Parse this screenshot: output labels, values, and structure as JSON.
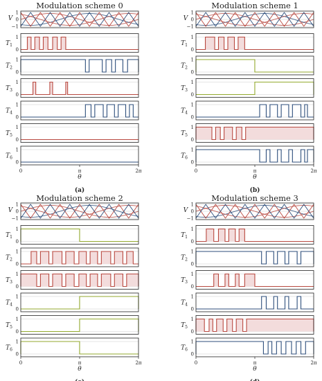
{
  "colors": {
    "red": "#b8483f",
    "blue": "#2d4e7b",
    "green": "#93aa2e",
    "fill": "#f3dcdc"
  },
  "chart_data": [
    {
      "type": "line",
      "panel": "a",
      "caption": "(a)",
      "title": "Modulation scheme 0",
      "xlabel": "θ",
      "x_ticks": [
        "0",
        "π",
        "2π"
      ],
      "xlim": [
        0,
        6.283
      ],
      "v_yticks": [
        "1",
        "0",
        "−1"
      ],
      "v_label": "V",
      "t_yticks": [
        "1",
        "0"
      ],
      "channels": [
        {
          "label": "T",
          "sub": "1",
          "color": "red",
          "fill": true,
          "default": 0,
          "pulses": [
            [
              0.35,
              0.55
            ],
            [
              0.75,
              1.0
            ],
            [
              1.2,
              1.45
            ],
            [
              1.7,
              1.95
            ],
            [
              2.15,
              2.4
            ]
          ]
        },
        {
          "label": "T",
          "sub": "2",
          "color": "blue",
          "default": 1,
          "pulses": [
            [
              0,
              3.45
            ],
            [
              3.65,
              4.35
            ],
            [
              4.55,
              4.85
            ],
            [
              5.05,
              5.45
            ],
            [
              5.7,
              6.283
            ]
          ]
        },
        {
          "label": "T",
          "sub": "3",
          "color": "red",
          "fill": true,
          "default": 1,
          "pulses": [
            [
              0.65,
              0.8
            ],
            [
              1.55,
              1.7
            ],
            [
              2.4,
              2.5
            ]
          ]
        },
        {
          "label": "T",
          "sub": "4",
          "color": "blue",
          "default": 0,
          "pulses": [
            [
              3.45,
              3.75
            ],
            [
              3.95,
              4.4
            ],
            [
              4.6,
              5.0
            ],
            [
              5.2,
              5.6
            ],
            [
              5.8,
              6.0
            ]
          ]
        },
        {
          "label": "T",
          "sub": "5",
          "color": "red",
          "default": 0,
          "pulses": []
        },
        {
          "label": "T",
          "sub": "6",
          "color": "blue",
          "default": 0,
          "pulses": []
        }
      ]
    },
    {
      "type": "line",
      "panel": "b",
      "caption": "(b)",
      "title": "Modulation scheme 1",
      "xlabel": "θ",
      "x_ticks": [
        "0",
        "π",
        "2π"
      ],
      "xlim": [
        0,
        6.283
      ],
      "v_yticks": [
        "1",
        "0",
        "−1"
      ],
      "v_label": "V",
      "t_yticks": [
        "1",
        "0"
      ],
      "channels": [
        {
          "label": "T",
          "sub": "1",
          "color": "red",
          "fill": true,
          "default": 0,
          "pulses": [
            [
              0.5,
              1.0
            ],
            [
              1.2,
              1.5
            ],
            [
              1.7,
              2.05
            ],
            [
              2.25,
              2.6
            ]
          ]
        },
        {
          "label": "T",
          "sub": "2",
          "color": "green",
          "default": 0,
          "pulses": [
            [
              0,
              3.14
            ]
          ]
        },
        {
          "label": "T",
          "sub": "3",
          "color": "green",
          "default": 0,
          "pulses": [
            [
              3.14,
              6.283
            ]
          ]
        },
        {
          "label": "T",
          "sub": "4",
          "color": "blue",
          "default": 0,
          "pulses": [
            [
              3.4,
              3.75
            ],
            [
              3.95,
              4.35
            ],
            [
              4.55,
              4.95
            ],
            [
              5.15,
              5.6
            ],
            [
              5.8,
              5.95
            ]
          ]
        },
        {
          "label": "T",
          "sub": "5",
          "color": "red",
          "fill": true,
          "default": 1,
          "pulses": [
            [
              0,
              0.85
            ],
            [
              1.05,
              1.3
            ],
            [
              1.5,
              1.95
            ],
            [
              2.15,
              2.45
            ],
            [
              2.65,
              6.283
            ]
          ]
        },
        {
          "label": "T",
          "sub": "6",
          "color": "blue",
          "default": 0,
          "pulses": [
            [
              0,
              3.4
            ],
            [
              3.75,
              3.95
            ],
            [
              4.35,
              4.55
            ],
            [
              4.95,
              5.15
            ],
            [
              5.6,
              5.8
            ],
            [
              5.95,
              6.283
            ]
          ]
        }
      ]
    },
    {
      "type": "line",
      "panel": "c",
      "caption": "(c)",
      "title": "Modulation scheme 2",
      "xlabel": "θ",
      "x_ticks": [
        "0",
        "π",
        "2π"
      ],
      "xlim": [
        0,
        6.283
      ],
      "v_yticks": [
        "1",
        "0",
        "−1"
      ],
      "v_label": "V",
      "t_yticks": [
        "1",
        "0"
      ],
      "channels": [
        {
          "label": "T",
          "sub": "1",
          "color": "green",
          "default": 0,
          "pulses": [
            [
              0,
              3.14
            ]
          ]
        },
        {
          "label": "T",
          "sub": "2",
          "color": "red",
          "fill": true,
          "default": 0,
          "pulses": [
            [
              0.55,
              0.85
            ],
            [
              1.05,
              1.5
            ],
            [
              1.7,
              2.2
            ],
            [
              2.4,
              2.85
            ],
            [
              3.1,
              3.5
            ],
            [
              3.7,
              4.1
            ],
            [
              4.3,
              4.8
            ],
            [
              5.0,
              5.45
            ],
            [
              5.65,
              6.0
            ]
          ]
        },
        {
          "label": "T",
          "sub": "3",
          "color": "red",
          "fill": true,
          "default": 0,
          "pulses": [
            [
              0,
              0.85
            ],
            [
              1.05,
              1.5
            ],
            [
              1.7,
              2.2
            ],
            [
              2.4,
              2.85
            ],
            [
              3.1,
              3.5
            ],
            [
              3.7,
              4.1
            ],
            [
              4.3,
              4.8
            ],
            [
              5.0,
              5.45
            ],
            [
              5.65,
              6.283
            ]
          ]
        },
        {
          "label": "T",
          "sub": "4",
          "color": "green",
          "default": 0,
          "pulses": [
            [
              3.14,
              6.283
            ]
          ]
        },
        {
          "label": "T",
          "sub": "5",
          "color": "green",
          "default": 0,
          "pulses": [
            [
              3.14,
              6.283
            ]
          ]
        },
        {
          "label": "T",
          "sub": "6",
          "color": "green",
          "default": 0,
          "pulses": [
            [
              0,
              3.14
            ]
          ]
        }
      ]
    },
    {
      "type": "line",
      "panel": "d",
      "caption": "(d)",
      "title": "Modulation scheme 3",
      "xlabel": "θ",
      "x_ticks": [
        "0",
        "π",
        "2π"
      ],
      "xlim": [
        0,
        6.283
      ],
      "v_yticks": [
        "1",
        "0",
        "−1"
      ],
      "v_label": "V",
      "t_yticks": [
        "1",
        "0"
      ],
      "channels": [
        {
          "label": "T",
          "sub": "1",
          "color": "red",
          "fill": true,
          "default": 0,
          "pulses": [
            [
              0.55,
              0.95
            ],
            [
              1.2,
              1.55
            ],
            [
              1.75,
              2.1
            ],
            [
              2.3,
              2.6
            ]
          ]
        },
        {
          "label": "T",
          "sub": "2",
          "color": "blue",
          "default": 1,
          "pulses": [
            [
              0,
              3.5
            ],
            [
              3.75,
              4.15
            ],
            [
              4.35,
              4.75
            ],
            [
              4.95,
              5.4
            ],
            [
              5.6,
              6.283
            ]
          ]
        },
        {
          "label": "T",
          "sub": "3",
          "color": "red",
          "fill": true,
          "default": 1,
          "pulses": [
            [
              0.95,
              1.2
            ],
            [
              1.55,
              1.75
            ],
            [
              2.1,
              2.3
            ],
            [
              2.6,
              3.14
            ]
          ]
        },
        {
          "label": "T",
          "sub": "4",
          "color": "blue",
          "default": 0,
          "pulses": [
            [
              3.5,
              3.75
            ],
            [
              4.15,
              4.35
            ],
            [
              4.75,
              4.95
            ],
            [
              5.4,
              5.6
            ]
          ]
        },
        {
          "label": "T",
          "sub": "5",
          "color": "red",
          "fill": true,
          "default": 1,
          "pulses": [
            [
              0,
              0.45
            ],
            [
              0.7,
              0.9
            ],
            [
              1.1,
              1.45
            ],
            [
              1.65,
              1.95
            ],
            [
              2.15,
              2.5
            ],
            [
              2.7,
              6.283
            ]
          ]
        },
        {
          "label": "T",
          "sub": "6",
          "color": "blue",
          "default": 0,
          "pulses": [
            [
              0,
              3.6
            ],
            [
              3.85,
              4.05
            ],
            [
              4.3,
              4.55
            ],
            [
              4.8,
              5.1
            ],
            [
              5.35,
              5.6
            ],
            [
              5.85,
              6.283
            ]
          ]
        }
      ]
    }
  ]
}
